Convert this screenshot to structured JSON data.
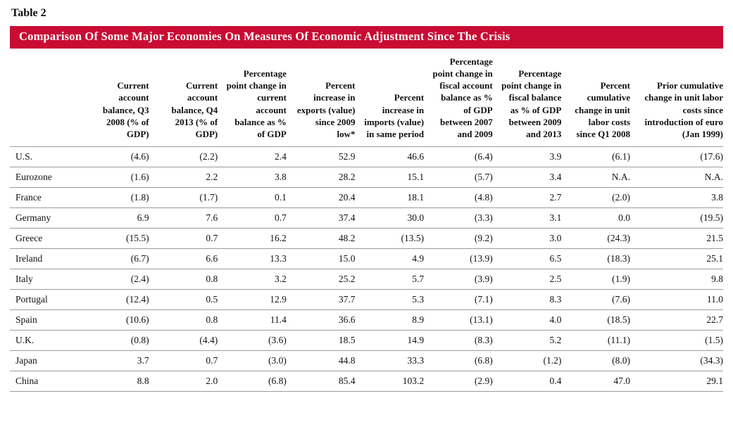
{
  "page": {
    "table_label": "Table 2",
    "title": "Comparison Of Some Major Economies On Measures Of Economic Adjustment Since The Crisis"
  },
  "colors": {
    "banner_bg": "#C80C34",
    "row_line": "#9b9b9b"
  },
  "chart_data": {
    "type": "table",
    "title": "Comparison Of Some Major Economies On Measures Of Economic Adjustment Since The Crisis",
    "columns": [
      "",
      "Current account balance, Q3 2008 (% of GDP)",
      "Current account balance, Q4 2013 (% of GDP)",
      "Percentage point change in current account balance as % of GDP",
      "Percent increase in exports (value) since 2009 low*",
      "Percent increase in imports (value) in same period",
      "Percentage point change in fiscal account balance as % of GDP between 2007 and 2009",
      "Percentage point change in fiscal balance as % of GDP between 2009 and 2013",
      "Percent cumulative change in unit labor costs since Q1 2008",
      "Prior cumulative change in unit labor costs since introduction of euro (Jan 1999)"
    ],
    "rows": [
      {
        "label": "U.S.",
        "values": [
          "(4.6)",
          "(2.2)",
          "2.4",
          "52.9",
          "46.6",
          "(6.4)",
          "3.9",
          "(6.1)",
          "(17.6)"
        ]
      },
      {
        "label": "Eurozone",
        "values": [
          "(1.6)",
          "2.2",
          "3.8",
          "28.2",
          "15.1",
          "(5.7)",
          "3.4",
          "N.A.",
          "N.A."
        ]
      },
      {
        "label": "France",
        "values": [
          "(1.8)",
          "(1.7)",
          "0.1",
          "20.4",
          "18.1",
          "(4.8)",
          "2.7",
          "(2.0)",
          "3.8"
        ]
      },
      {
        "label": "Germany",
        "values": [
          "6.9",
          "7.6",
          "0.7",
          "37.4",
          "30.0",
          "(3.3)",
          "3.1",
          "0.0",
          "(19.5)"
        ]
      },
      {
        "label": "Greece",
        "values": [
          "(15.5)",
          "0.7",
          "16.2",
          "48.2",
          "(13.5)",
          "(9.2)",
          "3.0",
          "(24.3)",
          "21.5"
        ]
      },
      {
        "label": "Ireland",
        "values": [
          "(6.7)",
          "6.6",
          "13.3",
          "15.0",
          "4.9",
          "(13.9)",
          "6.5",
          "(18.3)",
          "25.1"
        ]
      },
      {
        "label": "Italy",
        "values": [
          "(2.4)",
          "0.8",
          "3.2",
          "25.2",
          "5.7",
          "(3.9)",
          "2.5",
          "(1.9)",
          "9.8"
        ]
      },
      {
        "label": "Portugal",
        "values": [
          "(12.4)",
          "0.5",
          "12.9",
          "37.7",
          "5.3",
          "(7.1)",
          "8.3",
          "(7.6)",
          "11.0"
        ]
      },
      {
        "label": "Spain",
        "values": [
          "(10.6)",
          "0.8",
          "11.4",
          "36.6",
          "8.9",
          "(13.1)",
          "4.0",
          "(18.5)",
          "22.7"
        ]
      },
      {
        "label": "U.K.",
        "values": [
          "(0.8)",
          "(4.4)",
          "(3.6)",
          "18.5",
          "14.9",
          "(8.3)",
          "5.2",
          "(11.1)",
          "(1.5)"
        ]
      },
      {
        "label": "Japan",
        "values": [
          "3.7",
          "0.7",
          "(3.0)",
          "44.8",
          "33.3",
          "(6.8)",
          "(1.2)",
          "(8.0)",
          "(34.3)"
        ]
      },
      {
        "label": "China",
        "values": [
          "8.8",
          "2.0",
          "(6.8)",
          "85.4",
          "103.2",
          "(2.9)",
          "0.4",
          "47.0",
          "29.1"
        ]
      }
    ]
  }
}
